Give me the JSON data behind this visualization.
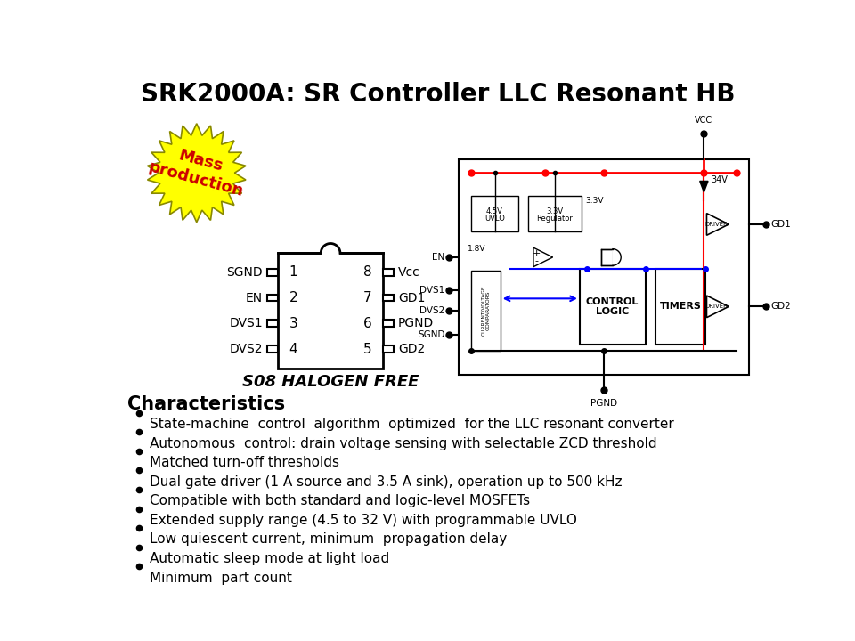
{
  "title": "SRK2000A: SR Controller LLC Resonant HB",
  "title_fontsize": 20,
  "title_fontweight": "bold",
  "bg_color": "#ffffff",
  "mass_production_text": "Mass\nproduction",
  "mass_production_color": "#ffff00",
  "mass_production_edge_color": "#888800",
  "mass_production_text_color": "#cc0000",
  "ic_pins_left": [
    "SGND",
    "EN",
    "DVS1",
    "DVS2"
  ],
  "ic_pins_right": [
    "Vcc",
    "GD1",
    "PGND",
    "GD2"
  ],
  "ic_numbers_left": [
    "1",
    "2",
    "3",
    "4"
  ],
  "ic_numbers_right": [
    "8",
    "7",
    "6",
    "5"
  ],
  "ic_label": "S08 HALOGEN FREE",
  "characteristics_title": "Characteristics",
  "bullet_points": [
    "State-machine  control  algorithm  optimized  for the LLC resonant converter",
    "Autonomous  control: drain voltage sensing with selectable ZCD threshold",
    "Matched turn-off thresholds",
    "Dual gate driver (1 A source and 3.5 A sink), operation up to 500 kHz",
    "Compatible with both standard and logic-level MOSFETs",
    "Extended supply range (4.5 to 32 V) with programmable UVLO",
    "Low quiescent current, minimum  propagation delay",
    "Automatic sleep mode at light load",
    "Minimum  part count"
  ]
}
